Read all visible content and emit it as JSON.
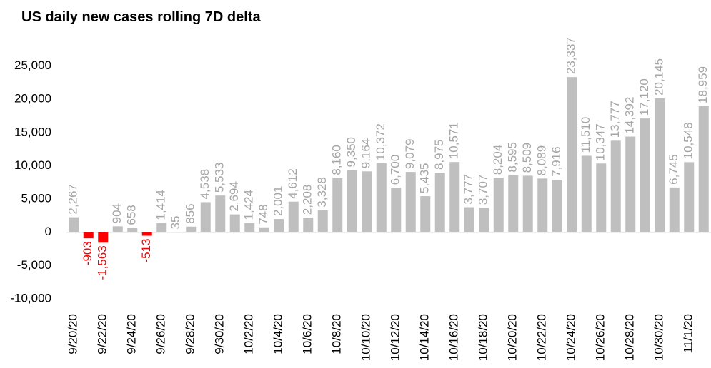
{
  "chart_data": {
    "type": "bar",
    "title": "US daily new cases rolling 7D delta",
    "categories": [
      "9/20/20",
      null,
      "9/22/20",
      null,
      "9/24/20",
      null,
      "9/26/20",
      null,
      "9/28/20",
      null,
      "9/30/20",
      null,
      "10/2/20",
      null,
      "10/4/20",
      null,
      "10/6/20",
      null,
      "10/8/20",
      null,
      "10/10/20",
      null,
      "10/12/20",
      null,
      "10/14/20",
      null,
      "10/16/20",
      null,
      "10/18/20",
      null,
      "10/20/20",
      null,
      "10/22/20",
      null,
      "10/24/20",
      null,
      "10/26/20",
      null,
      "10/28/20",
      null,
      "10/30/20",
      null,
      "11/1/20",
      null
    ],
    "values": [
      2267,
      -903,
      -1563,
      904,
      658,
      -513,
      1414,
      35,
      856,
      4538,
      5533,
      2694,
      1424,
      748,
      2001,
      4612,
      2208,
      3328,
      8160,
      9350,
      9164,
      10372,
      6700,
      9079,
      5435,
      8975,
      10571,
      3777,
      3707,
      8204,
      8595,
      8509,
      8089,
      7916,
      23337,
      11510,
      10347,
      13777,
      14392,
      17120,
      20145,
      6745,
      10548,
      18959
    ],
    "value_labels": [
      "2,267",
      "-903",
      "-1,563",
      "904",
      "658",
      "-513",
      "1,414",
      "35",
      "856",
      "4,538",
      "5,533",
      "2,694",
      "1,424",
      "748",
      "2,001",
      "4,612",
      "2,208",
      "3,328",
      "8,160",
      "9,350",
      "9,164",
      "10,372",
      "6,700",
      "9,079",
      "5,435",
      "8,975",
      "10,571",
      "3,777",
      "3,707",
      "8,204",
      "8,595",
      "8,509",
      "8,089",
      "7,916",
      "23,337",
      "11,510",
      "10,347",
      "13,777",
      "14,392",
      "17,120",
      "20,145",
      "6,745",
      "10,548",
      "18,959"
    ],
    "color": "#bfbfbf",
    "negative_color": "#ff0000",
    "ylim": [
      -10000,
      30000
    ],
    "yticks": [
      {
        "value": -10000,
        "label": "-10,000"
      },
      {
        "value": -5000,
        "label": "-5,000"
      },
      0,
      {
        "value": 5000,
        "label": "5,000"
      },
      {
        "value": 10000,
        "label": "10,000"
      },
      {
        "value": 15000,
        "label": "15,000"
      },
      {
        "value": 20000,
        "label": "20,000"
      },
      {
        "value": 25000,
        "label": "25,000"
      }
    ],
    "grid": false
  }
}
